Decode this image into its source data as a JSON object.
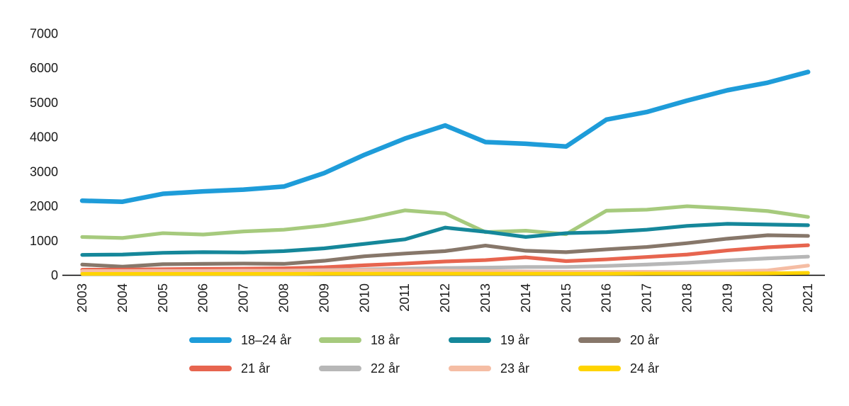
{
  "chart_data": {
    "type": "line",
    "title": "",
    "xlabel": "",
    "ylabel": "",
    "x": [
      "2003",
      "2004",
      "2005",
      "2006",
      "2007",
      "2008",
      "2009",
      "2010",
      "2011",
      "2012",
      "2013",
      "2014",
      "2015",
      "2016",
      "2017",
      "2018",
      "2019",
      "2020",
      "2021"
    ],
    "ylim": [
      0,
      7000
    ],
    "yticks": [
      0,
      1000,
      2000,
      3000,
      4000,
      5000,
      6000,
      7000
    ],
    "grid": false,
    "legend_position": "bottom",
    "axis_color": "#000000",
    "text_color": "#1a1a1a",
    "series": [
      {
        "name": "18–24 år",
        "color": "#1E9CD9",
        "stroke_width": 6.5,
        "values": [
          2150,
          2120,
          2350,
          2420,
          2470,
          2560,
          2950,
          3480,
          3950,
          4330,
          3850,
          3800,
          3720,
          4500,
          4720,
          5050,
          5350,
          5570,
          5880
        ]
      },
      {
        "name": "18 år",
        "color": "#A6CA7D",
        "stroke_width": 5.2,
        "values": [
          1100,
          1070,
          1210,
          1170,
          1260,
          1310,
          1430,
          1620,
          1870,
          1780,
          1240,
          1280,
          1180,
          1860,
          1890,
          1990,
          1930,
          1850,
          1680
        ]
      },
      {
        "name": "19 år",
        "color": "#15879A",
        "stroke_width": 5.2,
        "values": [
          580,
          590,
          640,
          660,
          650,
          690,
          770,
          900,
          1030,
          1370,
          1250,
          1100,
          1210,
          1240,
          1310,
          1420,
          1480,
          1460,
          1440
        ]
      },
      {
        "name": "20 år",
        "color": "#87776A",
        "stroke_width": 5.2,
        "values": [
          300,
          240,
          310,
          320,
          330,
          320,
          410,
          540,
          620,
          690,
          850,
          700,
          660,
          740,
          810,
          920,
          1050,
          1150,
          1130
        ]
      },
      {
        "name": "21 år",
        "color": "#E7654F",
        "stroke_width": 5.2,
        "values": [
          150,
          155,
          165,
          175,
          180,
          190,
          220,
          280,
          330,
          390,
          430,
          510,
          400,
          450,
          520,
          590,
          710,
          800,
          860
        ]
      },
      {
        "name": "22 år",
        "color": "#B7B7B7",
        "stroke_width": 5.2,
        "values": [
          90,
          95,
          100,
          105,
          110,
          120,
          140,
          160,
          180,
          200,
          210,
          230,
          230,
          260,
          300,
          350,
          420,
          480,
          530
        ]
      },
      {
        "name": "23 år",
        "color": "#F5BDA4",
        "stroke_width": 5.2,
        "values": [
          110,
          110,
          115,
          115,
          120,
          120,
          130,
          140,
          130,
          120,
          110,
          100,
          90,
          90,
          90,
          90,
          100,
          130,
          270
        ]
      },
      {
        "name": "24 år",
        "color": "#FFD400",
        "stroke_width": 5.2,
        "values": [
          30,
          30,
          30,
          30,
          30,
          30,
          35,
          35,
          35,
          35,
          35,
          35,
          35,
          35,
          40,
          40,
          40,
          45,
          60
        ]
      }
    ]
  },
  "legend": {
    "items": [
      "18–24 år",
      "18 år",
      "19 år",
      "20 år",
      "21 år",
      "22 år",
      "23 år",
      "24 år"
    ]
  }
}
